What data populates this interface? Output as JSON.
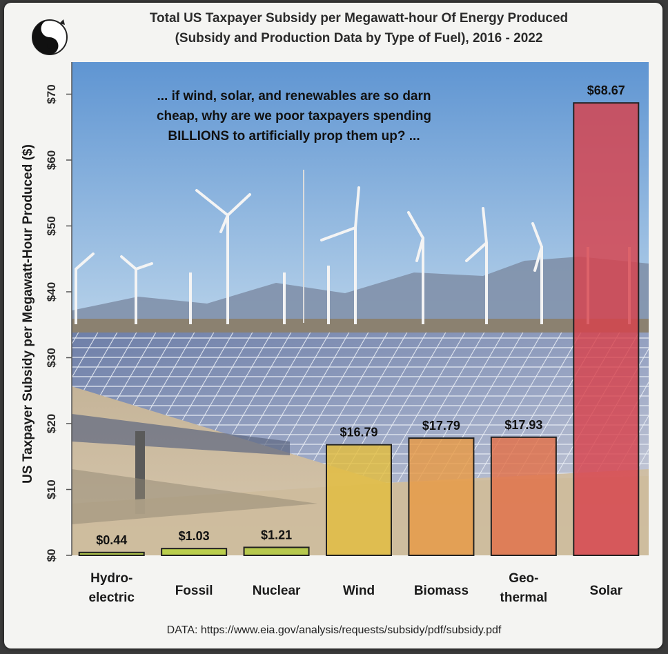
{
  "chart_data": {
    "type": "bar",
    "title_line1": "Total US Taxpayer Subsidy per Megawatt-hour Of Energy Produced",
    "title_line2": "(Subsidy and Production Data by Type of Fuel), 2016 - 2022",
    "ylabel": "US Taxpayer Subsidy per Megawatt-Hour Produced ($)",
    "xlabel": "",
    "ylim": [
      0,
      75
    ],
    "yticks": [
      0,
      10,
      20,
      30,
      40,
      50,
      60,
      70
    ],
    "ytick_labels": [
      "$0",
      "$10",
      "$20",
      "$30",
      "$40",
      "$50",
      "$60",
      "$70"
    ],
    "categories": [
      [
        "Hydro-",
        "electric"
      ],
      [
        "Fossil"
      ],
      [
        "Nuclear"
      ],
      [
        "Wind"
      ],
      [
        "Biomass"
      ],
      [
        "Geo-",
        "thermal"
      ],
      [
        "Solar"
      ]
    ],
    "values": [
      0.44,
      1.03,
      1.21,
      16.79,
      17.79,
      17.93,
      68.67
    ],
    "value_labels": [
      "$0.44",
      "$1.03",
      "$1.21",
      "$16.79",
      "$17.79",
      "$17.93",
      "$68.67"
    ],
    "bar_colors": [
      "#a8c63a",
      "#b6d23a",
      "#b2cc3c",
      "#e3bd3e",
      "#e89a44",
      "#e27048",
      "#d8424c"
    ],
    "annotation": [
      "... if wind, solar, and renewables are so darn",
      "cheap, why are we poor taxpayers spending",
      "BILLIONS to artificially prop them up? ..."
    ],
    "grid": false,
    "legend": "none"
  },
  "source_note": "DATA: https://www.eia.gov/analysis/requests/subsidy/pdf/subsidy.pdf"
}
